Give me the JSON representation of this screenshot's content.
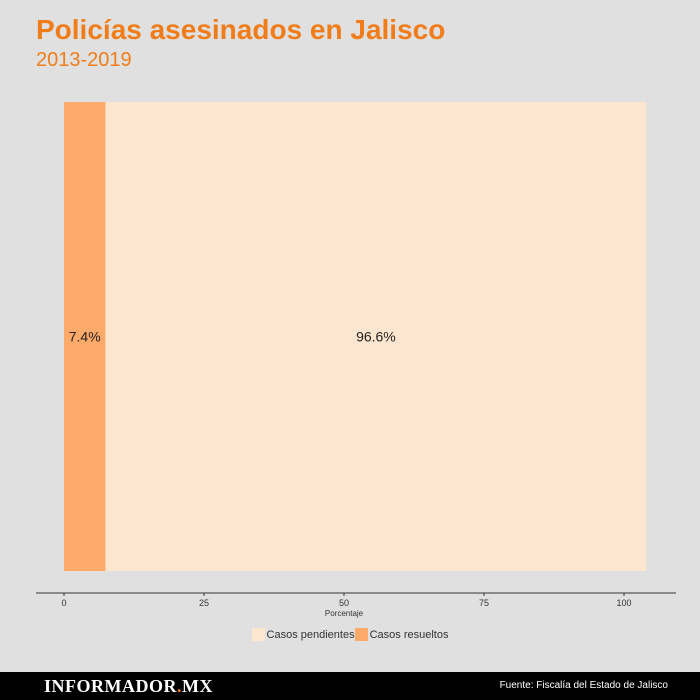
{
  "header": {
    "title": "Policías asesinados en Jalisco",
    "subtitle": "2013-2019"
  },
  "colors": {
    "accent": "#f07d19",
    "casos_pendientes": "#fde6cf",
    "casos_resueltos": "#fdaa6a",
    "background": "#e0e0e0"
  },
  "chart_data": {
    "type": "bar",
    "orientation": "horizontal-stacked",
    "xlabel": "Porcentaje",
    "xlim": [
      0,
      104
    ],
    "xticks": [
      0,
      25,
      50,
      75,
      100
    ],
    "series": [
      {
        "name": "Casos resueltos",
        "value": 7.4,
        "label": "7.4%",
        "color": "#fdaa6a"
      },
      {
        "name": "Casos pendientes",
        "value": 96.6,
        "label": "96.6%",
        "color": "#fde6cf"
      }
    ],
    "legend_position": "bottom",
    "legend": [
      "Casos pendientes",
      "Casos resueltos"
    ]
  },
  "footer": {
    "brand_main": "INFORMADOR",
    "brand_dot": ".",
    "brand_suffix": "MX",
    "source": "Fuente: Fiscalía del Estado de Jalisco"
  }
}
